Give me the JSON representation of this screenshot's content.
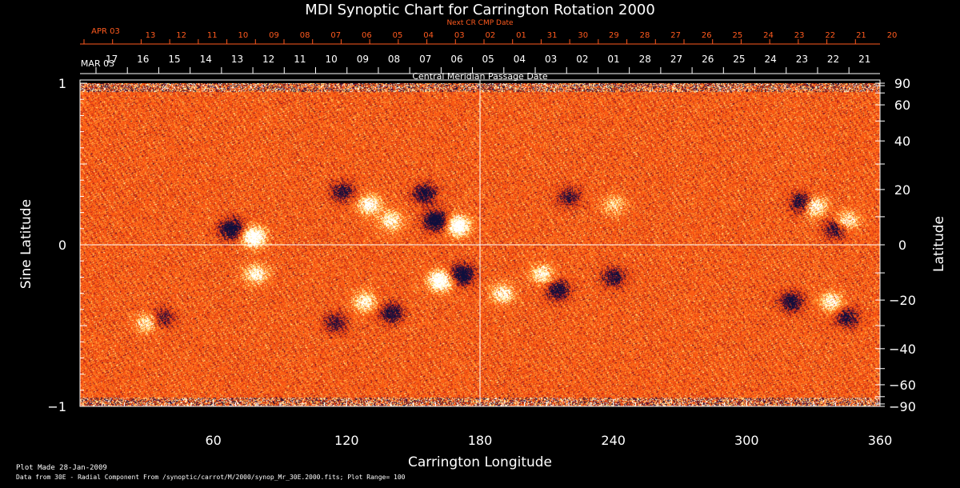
{
  "chart_data": {
    "type": "heatmap",
    "title": "MDI Synoptic Chart for Carrington Rotation 2000",
    "xlabel": "Carrington Longitude",
    "ylabel": "Sine Latitude",
    "ylabel_right": "Latitude",
    "xlim": [
      0,
      360
    ],
    "ylim": [
      -1,
      1
    ],
    "x_ticks": [
      60,
      120,
      180,
      240,
      300,
      360
    ],
    "y_ticks_left": [
      -1,
      0,
      1
    ],
    "y_ticks_right": [
      90,
      60,
      40,
      20,
      0,
      -20,
      -40,
      -60,
      -90
    ],
    "top_axis_label": "Central Meridian Passage Date",
    "top_axis_month": "MAR 03",
    "top_axis_days": [
      "17",
      "16",
      "15",
      "14",
      "13",
      "12",
      "11",
      "10",
      "09",
      "08",
      "07",
      "06",
      "05",
      "04",
      "03",
      "02",
      "01",
      "28",
      "27",
      "26",
      "25",
      "24",
      "23",
      "22",
      "21"
    ],
    "next_cr_label": "Next CR CMP Date",
    "next_cr_month": "APR 03",
    "next_cr_days": [
      "13",
      "12",
      "11",
      "10",
      "09",
      "08",
      "07",
      "06",
      "05",
      "04",
      "03",
      "02",
      "01",
      "31",
      "30",
      "29",
      "28",
      "27",
      "26",
      "25",
      "24",
      "23",
      "22",
      "21",
      "20"
    ],
    "colors": {
      "background": "#ff4500",
      "positive": "#ffffff",
      "negative": "#101040",
      "axes": "#ffffff",
      "next_cr": "#ff5a1e"
    },
    "field_regions": [
      {
        "lon": 78,
        "lat": 0.05,
        "polarity": "positive",
        "strength": 1.0
      },
      {
        "lon": 68,
        "lat": 0.1,
        "polarity": "negative",
        "strength": 0.9
      },
      {
        "lon": 170,
        "lat": 0.12,
        "polarity": "positive",
        "strength": 1.0
      },
      {
        "lon": 160,
        "lat": 0.15,
        "polarity": "negative",
        "strength": 1.0
      },
      {
        "lon": 155,
        "lat": 0.32,
        "polarity": "negative",
        "strength": 0.7
      },
      {
        "lon": 130,
        "lat": 0.25,
        "polarity": "positive",
        "strength": 0.7
      },
      {
        "lon": 140,
        "lat": 0.15,
        "polarity": "positive",
        "strength": 0.6
      },
      {
        "lon": 118,
        "lat": 0.33,
        "polarity": "negative",
        "strength": 0.6
      },
      {
        "lon": 330,
        "lat": 0.24,
        "polarity": "positive",
        "strength": 0.8
      },
      {
        "lon": 325,
        "lat": 0.26,
        "polarity": "negative",
        "strength": 0.8
      },
      {
        "lon": 345,
        "lat": 0.15,
        "polarity": "positive",
        "strength": 0.6
      },
      {
        "lon": 340,
        "lat": 0.1,
        "polarity": "negative",
        "strength": 0.6
      },
      {
        "lon": 162,
        "lat": -0.22,
        "polarity": "positive",
        "strength": 1.0
      },
      {
        "lon": 172,
        "lat": -0.18,
        "polarity": "negative",
        "strength": 0.9
      },
      {
        "lon": 128,
        "lat": -0.35,
        "polarity": "positive",
        "strength": 0.6
      },
      {
        "lon": 140,
        "lat": -0.42,
        "polarity": "negative",
        "strength": 0.7
      },
      {
        "lon": 115,
        "lat": -0.48,
        "polarity": "negative",
        "strength": 0.5
      },
      {
        "lon": 79,
        "lat": -0.18,
        "polarity": "positive",
        "strength": 0.6
      },
      {
        "lon": 37,
        "lat": -0.45,
        "polarity": "negative",
        "strength": 0.5
      },
      {
        "lon": 30,
        "lat": -0.48,
        "polarity": "positive",
        "strength": 0.5
      },
      {
        "lon": 208,
        "lat": -0.18,
        "polarity": "positive",
        "strength": 0.6
      },
      {
        "lon": 215,
        "lat": -0.28,
        "polarity": "negative",
        "strength": 0.7
      },
      {
        "lon": 240,
        "lat": -0.2,
        "polarity": "negative",
        "strength": 0.6
      },
      {
        "lon": 190,
        "lat": -0.3,
        "polarity": "positive",
        "strength": 0.6
      },
      {
        "lon": 320,
        "lat": -0.35,
        "polarity": "negative",
        "strength": 0.7
      },
      {
        "lon": 338,
        "lat": -0.35,
        "polarity": "positive",
        "strength": 0.6
      },
      {
        "lon": 345,
        "lat": -0.45,
        "polarity": "negative",
        "strength": 0.6
      },
      {
        "lon": 220,
        "lat": 0.3,
        "polarity": "negative",
        "strength": 0.5
      },
      {
        "lon": 240,
        "lat": 0.25,
        "polarity": "positive",
        "strength": 0.4
      }
    ]
  },
  "footer": {
    "plot_made": "Plot Made 28-Jan-2009",
    "data_from": "Data from 30E - Radial Component From /synoptic/carrot/M/2000/synop_Mr_30E.2000.fits; Plot Range= 100"
  }
}
